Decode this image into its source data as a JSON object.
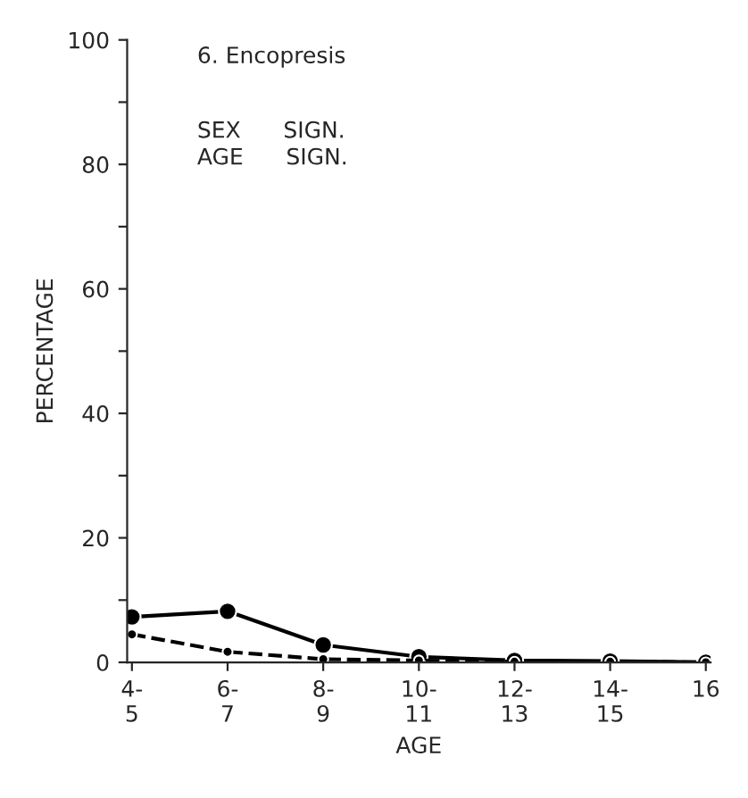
{
  "chart_data": {
    "type": "line",
    "title": "6. Encopresis",
    "xlabel": "AGE",
    "ylabel": "PERCENTAGE",
    "categories": [
      "4-\n5",
      "6-\n7",
      "8-\n9",
      "10-\n11",
      "12-\n13",
      "14-\n15",
      "16"
    ],
    "series": [
      {
        "color": "#000000",
        "values": [
          7.3,
          8.2,
          2.8,
          0.9,
          0.3,
          0.2,
          0
        ],
        "line_style": "solid",
        "marker": "circle"
      },
      {
        "color": "#000000",
        "values": [
          4.5,
          1.7,
          0.5,
          0.3,
          0.1,
          0.1,
          0
        ],
        "line_style": "dashed",
        "marker": "circle"
      }
    ],
    "annotations": [
      "SEX      SIGN.\nAGE      SIGN."
    ],
    "ylim": [
      0,
      100
    ],
    "yticks": [
      0,
      {
        "value": 10,
        "label": null
      },
      20,
      {
        "value": 30,
        "label": null
      },
      40,
      {
        "value": 50,
        "label": null
      },
      60,
      {
        "value": 70,
        "label": null
      },
      80,
      {
        "value": 90,
        "label": null
      },
      100
    ],
    "grid": false,
    "legend": false
  }
}
